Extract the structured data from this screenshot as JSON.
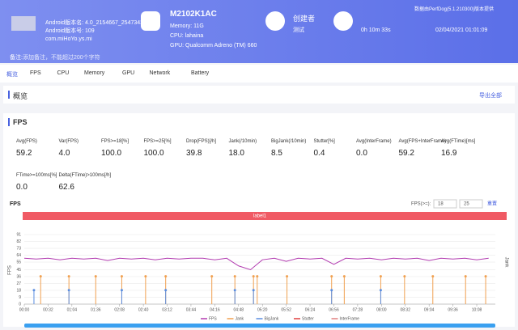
{
  "header": {
    "app_info": [
      "Android版本名: 4.0_2154667_2547343",
      "Android版本号: 109",
      "com.miHoYo.ys.mi"
    ],
    "device": "M2102K1AC",
    "device_info": [
      "Memory: 11G",
      "CPU: lahaina",
      "GPU: Qualcomm Adreno (TM) 660"
    ],
    "creator_label": "创建者",
    "creator": "测试",
    "duration": "0h 10m 33s",
    "date": "02/04/2021 01:01:09",
    "provider": "数据由PerfDog(5.1.210300)版本提供",
    "note_label": "备注:",
    "note": "添加备注，不能超过200个字符"
  },
  "tabs": [
    "概览",
    "FPS",
    "CPU",
    "Memory",
    "GPU",
    "Network",
    "Battery"
  ],
  "overview": {
    "title": "概览",
    "export": "导出全部"
  },
  "fps_section": {
    "title": "FPS",
    "stats": [
      {
        "label": "Avg(FPS)",
        "value": "59.2"
      },
      {
        "label": "Var(FPS)",
        "value": "4.0"
      },
      {
        "label": "FPS>=18[%]",
        "value": "100.0"
      },
      {
        "label": "FPS>=25[%]",
        "value": "100.0"
      },
      {
        "label": "Drop(FPS)[/h]",
        "value": "39.8"
      },
      {
        "label": "Jank(/10min)",
        "value": "18.0"
      },
      {
        "label": "BigJank(/10min)",
        "value": "8.5"
      },
      {
        "label": "Stutter[%]",
        "value": "0.4"
      },
      {
        "label": "Avg(InterFrame)",
        "value": "0.0"
      },
      {
        "label": "Avg(FPS+InterFrame)",
        "value": "59.2"
      },
      {
        "label": "Avg(FTime)[ms]",
        "value": "16.9"
      },
      {
        "label": "FTime>=100ms[%]",
        "value": "0.0"
      },
      {
        "label": "Delta(FTime)>100ms[/h]",
        "value": "62.6"
      }
    ]
  },
  "chart_data": {
    "type": "line",
    "title": "FPS",
    "threshold_label": "FPS(>=):",
    "thresholds": [
      18,
      25
    ],
    "reset": "重置",
    "band_label": "label1",
    "y_label": "FPS",
    "y2_label": "Jank",
    "ylim": [
      0,
      91
    ],
    "yticks": [
      0,
      9,
      18,
      27,
      36,
      45,
      55,
      64,
      73,
      82,
      91
    ],
    "xlim": [
      0,
      633
    ],
    "y2lim": [
      0,
      2.5
    ],
    "xticks": [
      {
        "value": 0,
        "label": "00:00"
      },
      {
        "value": 32,
        "label": "00:32"
      },
      {
        "value": 64,
        "label": "01:04"
      },
      {
        "value": 96,
        "label": "01:36"
      },
      {
        "value": 128,
        "label": "02:08"
      },
      {
        "value": 160,
        "label": "02:40"
      },
      {
        "value": 192,
        "label": "03:12"
      },
      {
        "value": 224,
        "label": "03:44"
      },
      {
        "value": 256,
        "label": "04:16"
      },
      {
        "value": 288,
        "label": "04:48"
      },
      {
        "value": 320,
        "label": "05:20"
      },
      {
        "value": 352,
        "label": "05:52"
      },
      {
        "value": 384,
        "label": "06:24"
      },
      {
        "value": 416,
        "label": "06:56"
      },
      {
        "value": 448,
        "label": "07:28"
      },
      {
        "value": 480,
        "label": "08:00"
      },
      {
        "value": 512,
        "label": "08:32"
      },
      {
        "value": 544,
        "label": "09:04"
      },
      {
        "value": 576,
        "label": "09:36"
      },
      {
        "value": 608,
        "label": "10:08"
      }
    ],
    "series": [
      {
        "name": "FPS",
        "color": "#b23cb0",
        "x": [
          0,
          16,
          32,
          48,
          64,
          80,
          96,
          112,
          128,
          144,
          160,
          176,
          192,
          208,
          224,
          240,
          256,
          272,
          288,
          304,
          320,
          336,
          352,
          368,
          384,
          400,
          416,
          432,
          448,
          464,
          480,
          496,
          512,
          528,
          544,
          560,
          576,
          592,
          608,
          624
        ],
        "values": [
          60,
          59,
          60,
          58,
          60,
          59,
          60,
          57,
          60,
          59,
          60,
          58,
          60,
          59,
          60,
          60,
          58,
          60,
          50,
          45,
          58,
          60,
          56,
          60,
          59,
          60,
          52,
          60,
          59,
          60,
          58,
          60,
          59,
          60,
          57,
          60,
          59,
          60,
          58,
          60
        ]
      },
      {
        "name": "Jank",
        "color": "#f0a050",
        "x": [
          22,
          60,
          96,
          131,
          163,
          190,
          252,
          283,
          308,
          313,
          353,
          413,
          430,
          479,
          511,
          549,
          593,
          620
        ],
        "values": [
          1,
          1,
          1,
          1,
          1,
          1,
          1,
          1,
          1,
          1,
          1,
          1,
          1,
          1,
          1,
          1,
          1,
          1
        ]
      },
      {
        "name": "BigJank",
        "color": "#5a8de0",
        "x": [
          13,
          60,
          131,
          190,
          283,
          308,
          413,
          479
        ],
        "values": [
          0.5,
          0.5,
          0.5,
          0.5,
          0.5,
          0.5,
          0.5,
          0.5
        ]
      },
      {
        "name": "Stutter",
        "color": "#e04040",
        "x": [],
        "values": []
      },
      {
        "name": "InterFrame",
        "color": "#e08080",
        "x": [],
        "values": []
      }
    ]
  }
}
